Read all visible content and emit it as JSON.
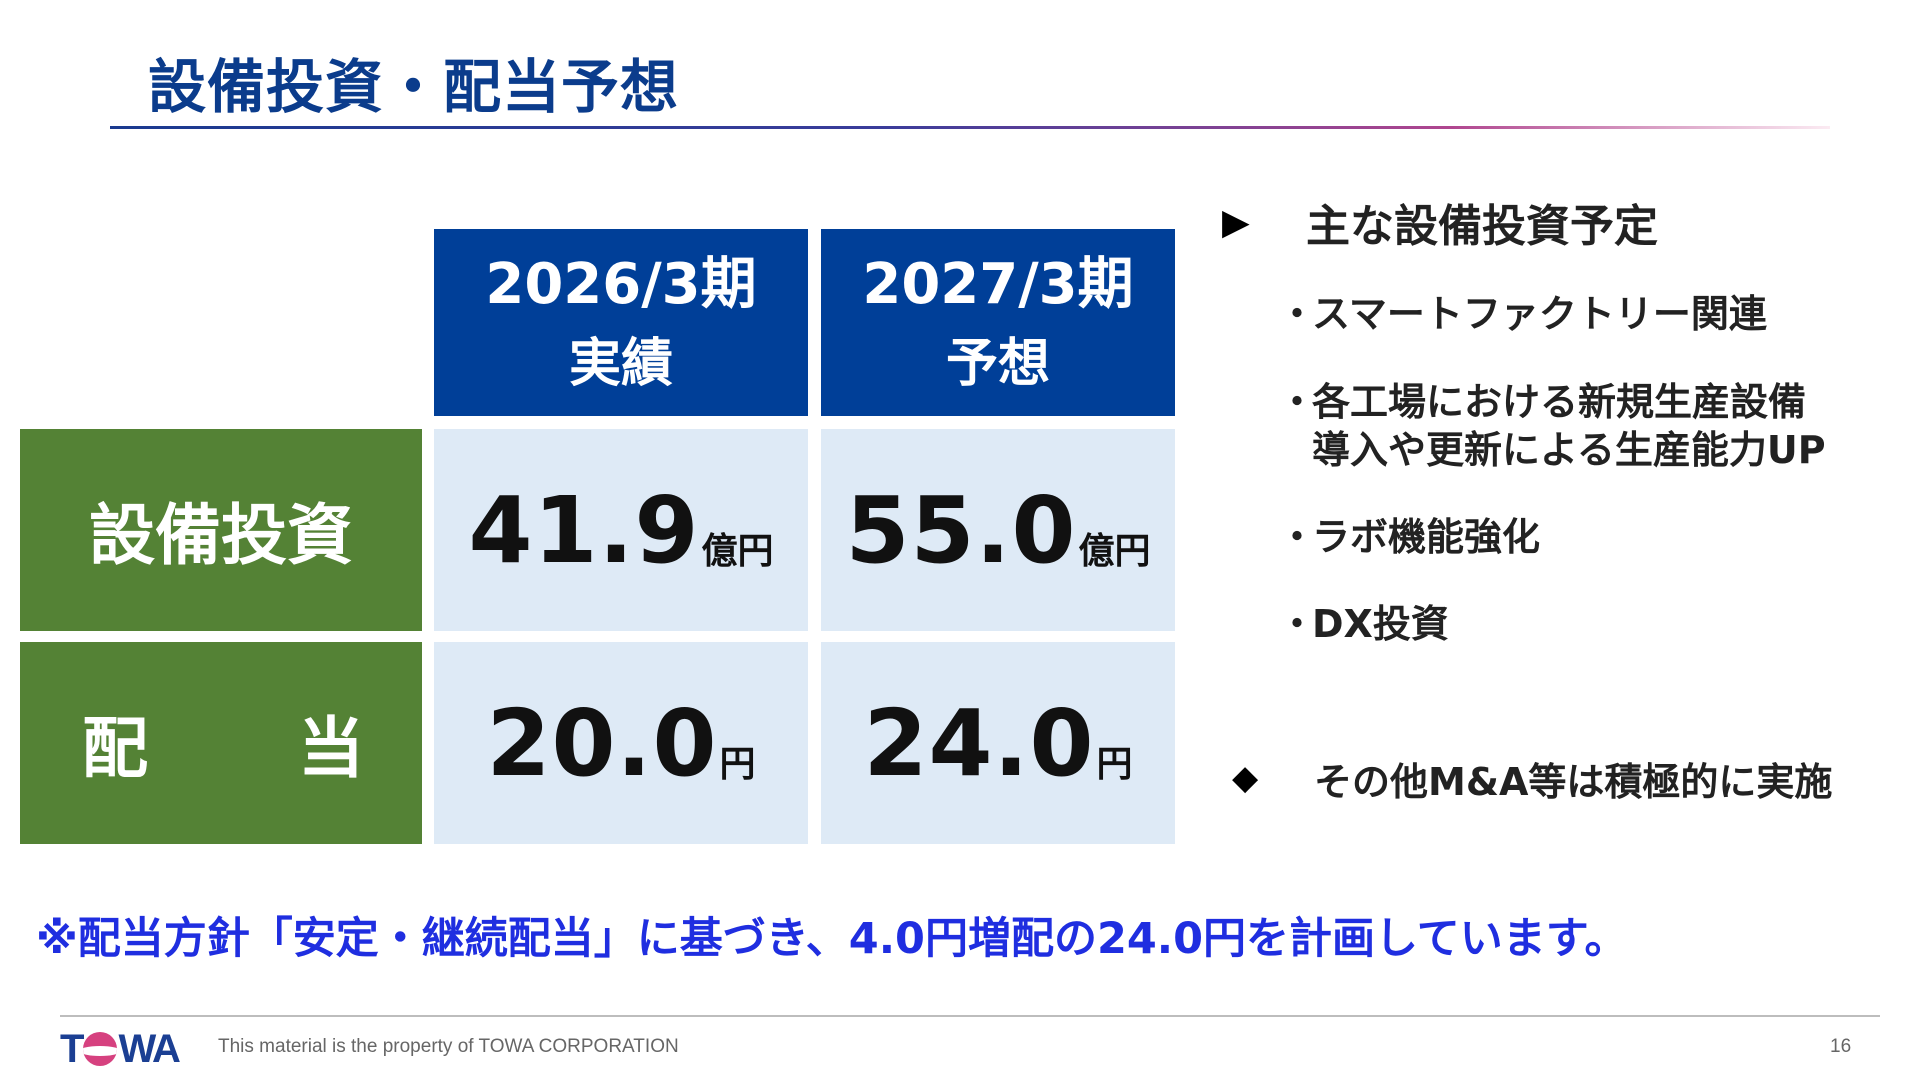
{
  "title": "設備投資・配当予想",
  "table": {
    "columns": [
      {
        "line1": "2026/3期",
        "line2": "実績"
      },
      {
        "line1": "2027/3期",
        "line2": "予想"
      }
    ],
    "rows": [
      {
        "label": "設備投資",
        "values": [
          {
            "num": "41.9",
            "unit": "億円"
          },
          {
            "num": "55.0",
            "unit": "億円"
          }
        ]
      },
      {
        "label_left": "配",
        "label_right": "当",
        "values": [
          {
            "num": "20.0",
            "unit": "円"
          },
          {
            "num": "24.0",
            "unit": "円"
          }
        ]
      }
    ]
  },
  "plan": {
    "arrow": "▶",
    "heading": "主な設備投資予定",
    "bullet_mark": "・",
    "items": [
      {
        "text": "スマートファクトリー関連"
      },
      {
        "text": "各工場における新規生産設備",
        "cont": "導入や更新による生産能力UP"
      },
      {
        "text": "ラボ機能強化"
      },
      {
        "text": "DX投資"
      }
    ],
    "other_mark": "◆",
    "other": "その他M&A等は積極的に実施"
  },
  "note": "※配当方針「安定・継続配当」に基づき、4.0円増配の24.0円を計画しています。",
  "footer": {
    "logo_parts": [
      "T",
      "WA"
    ],
    "text": "This material is the property of TOWA CORPORATION",
    "page": "16"
  },
  "colors": {
    "title": "#0b3c8c",
    "header_bg": "#003f98",
    "label_bg": "#548235",
    "value_bg": "#deeaf6",
    "note": "#1f2ee0",
    "logo_blue": "#1b3f93",
    "logo_pink": "#d6417f"
  }
}
